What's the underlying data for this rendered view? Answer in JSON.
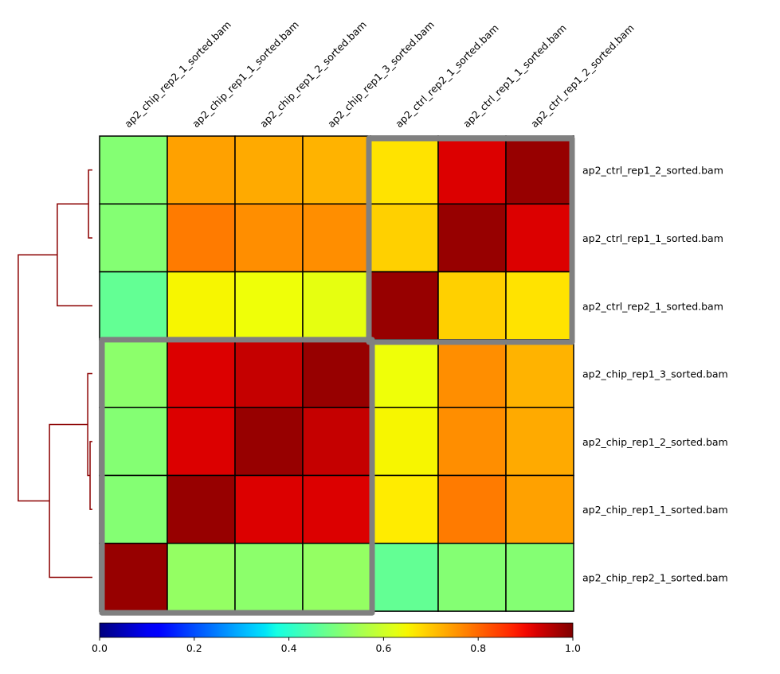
{
  "chart_data": {
    "type": "heatmap",
    "title": "",
    "column_labels": [
      "ap2_chip_rep2_1_sorted.bam",
      "ap2_chip_rep1_1_sorted.bam",
      "ap2_chip_rep1_2_sorted.bam",
      "ap2_chip_rep1_3_sorted.bam",
      "ap2_ctrl_rep2_1_sorted.bam",
      "ap2_ctrl_rep1_1_sorted.bam",
      "ap2_ctrl_rep1_2_sorted.bam"
    ],
    "row_labels": [
      "ap2_ctrl_rep1_2_sorted.bam",
      "ap2_ctrl_rep1_1_sorted.bam",
      "ap2_ctrl_rep2_1_sorted.bam",
      "ap2_chip_rep1_3_sorted.bam",
      "ap2_chip_rep1_2_sorted.bam",
      "ap2_chip_rep1_1_sorted.bam",
      "ap2_chip_rep2_1_sorted.bam"
    ],
    "values": [
      [
        0.51,
        0.74,
        0.73,
        0.72,
        0.67,
        0.92,
        0.98
      ],
      [
        0.51,
        0.78,
        0.76,
        0.76,
        0.69,
        0.98,
        0.92
      ],
      [
        0.47,
        0.65,
        0.64,
        0.63,
        0.98,
        0.69,
        0.67
      ],
      [
        0.52,
        0.92,
        0.94,
        0.98,
        0.64,
        0.76,
        0.72
      ],
      [
        0.51,
        0.92,
        0.98,
        0.94,
        0.65,
        0.76,
        0.73
      ],
      [
        0.51,
        0.98,
        0.92,
        0.92,
        0.66,
        0.78,
        0.74
      ],
      [
        0.98,
        0.53,
        0.52,
        0.53,
        0.47,
        0.51,
        0.51
      ]
    ],
    "colormap": "jet",
    "vmin": 0.0,
    "vmax": 1.0,
    "colorbar": {
      "ticks": [
        0.0,
        0.2,
        0.4,
        0.6,
        0.8,
        1.0
      ],
      "tick_labels": [
        "0.0",
        "0.2",
        "0.4",
        "0.6",
        "0.8",
        "1.0"
      ],
      "placement": "bottom"
    },
    "clusters": [
      {
        "rows": [
          0,
          2
        ],
        "cols": [
          4,
          6
        ]
      },
      {
        "rows": [
          3,
          6
        ],
        "cols": [
          0,
          3
        ]
      }
    ],
    "dendrogram": {
      "placement": "left",
      "color": "#8b0000",
      "merges": [
        {
          "a": 0,
          "b": 1,
          "height": 0.05
        },
        {
          "a": "m0",
          "b": 2,
          "height": 0.45
        },
        {
          "a": 4,
          "b": 5,
          "height": 0.03
        },
        {
          "a": "m2",
          "b": 3,
          "height": 0.06
        },
        {
          "a": "m3",
          "b": 6,
          "height": 0.55
        },
        {
          "a": "m1",
          "b": "m4",
          "height": 0.95
        }
      ]
    },
    "cell_border_color": "#000000",
    "cluster_box_color": "#808080"
  }
}
